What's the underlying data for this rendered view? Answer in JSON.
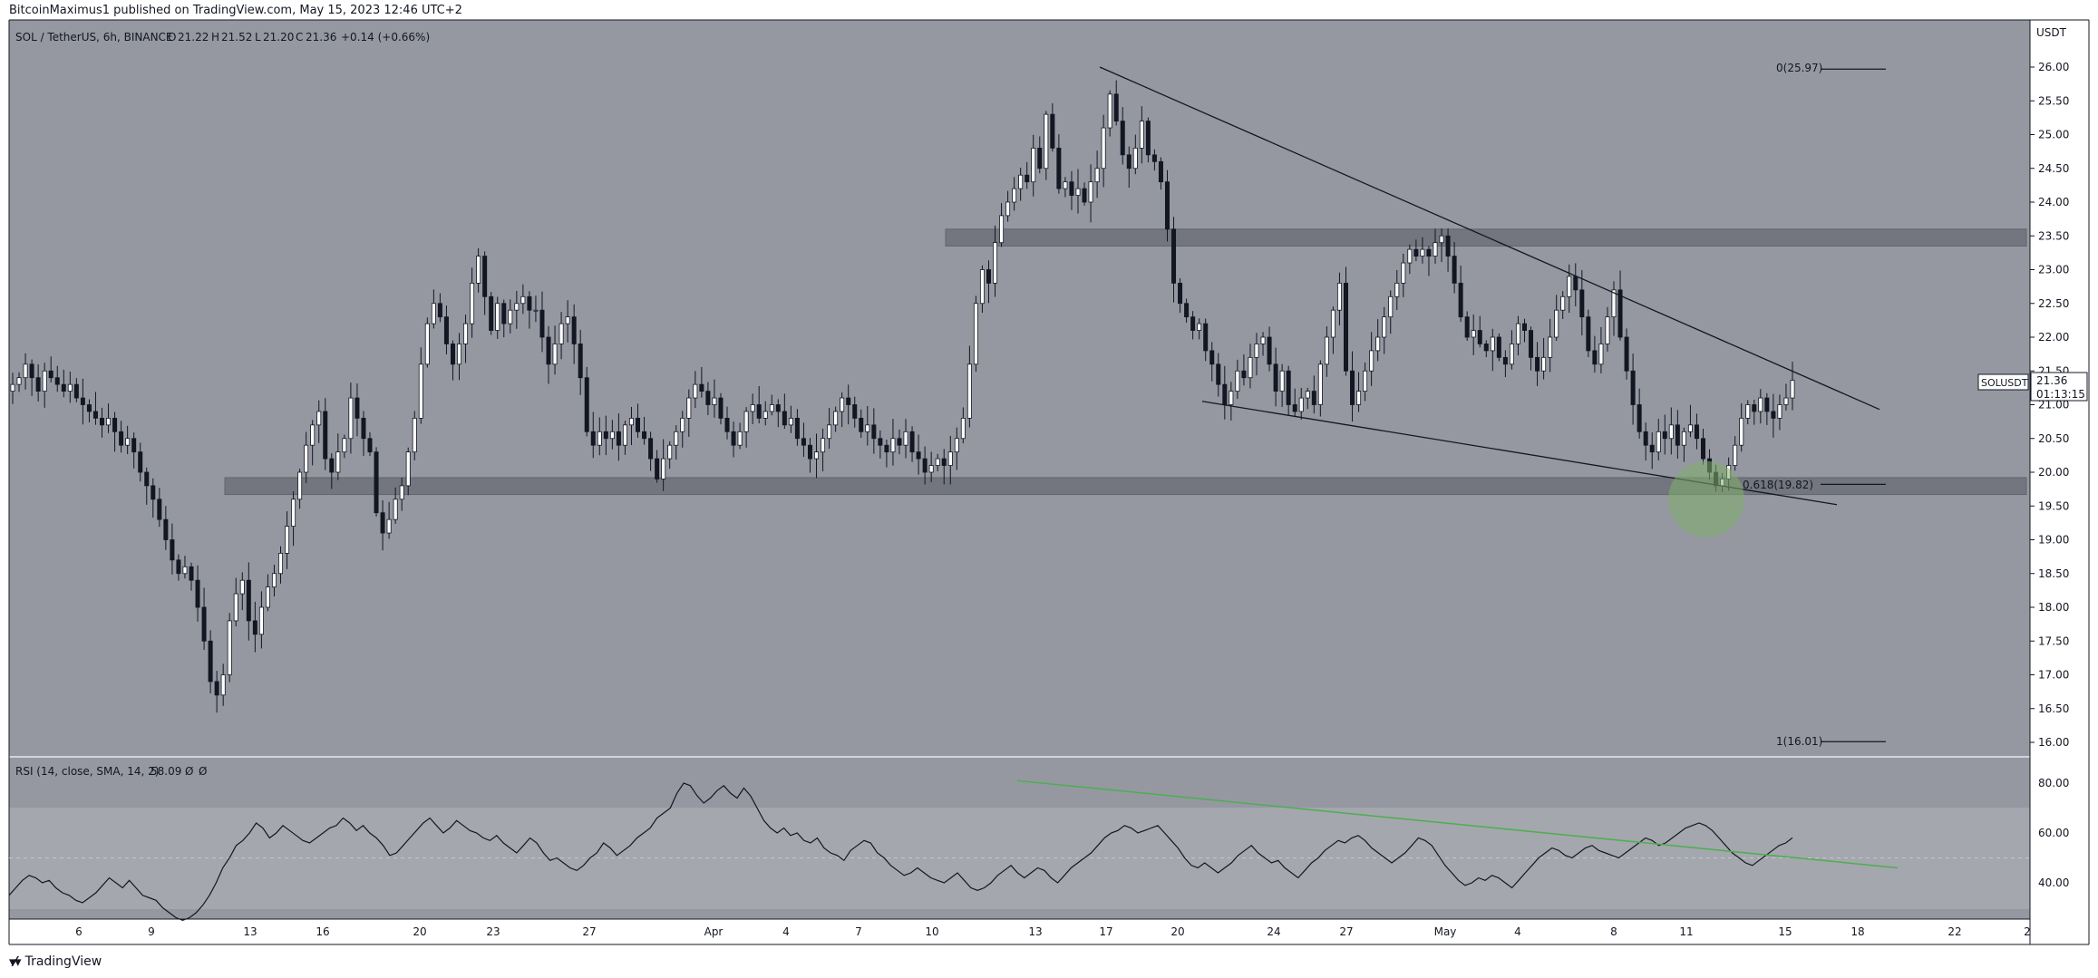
{
  "header": {
    "publisher": "BitcoinMaximus1 published on TradingView.com, May 15, 2023 12:46 UTC+2"
  },
  "footer": {
    "brand": "TradingView",
    "logo_icon": "tradingview-logo-icon"
  },
  "colors": {
    "panel_bg": "#9598a1",
    "frame": "#131722",
    "candle_up": "#ffffff",
    "candle_down": "#131722",
    "zone": "#6b6e76",
    "rsi_line": "#131722",
    "rsi_trend": "#4caf50",
    "highlight": "#7fae6b"
  },
  "main": {
    "legend": {
      "symbol": "SOL / TetherUS, 6h, BINANCE",
      "o_label": "O",
      "o_value": "21.22",
      "h_label": "H",
      "h_value": "21.52",
      "l_label": "L",
      "l_value": "21.20",
      "c_label": "C",
      "c_value": "21.36",
      "change": "+0.14 (+0.66%)"
    },
    "currency": "USDT",
    "price_ticks": [
      "26.00",
      "25.50",
      "25.00",
      "24.50",
      "24.00",
      "23.50",
      "23.00",
      "22.50",
      "22.00",
      "21.50",
      "21.00",
      "20.50",
      "20.00",
      "19.50",
      "19.00",
      "18.50",
      "18.00",
      "17.50",
      "17.00",
      "16.50",
      "16.00"
    ],
    "price_tag": {
      "symbol": "SOLUSDT",
      "price": "21.36",
      "countdown": "01:13:15"
    },
    "fib_labels": [
      "0(25.97)",
      "0.618(19.82)",
      "1(16.01)"
    ]
  },
  "rsi": {
    "legend": {
      "name": "RSI (14, close, SMA, 14, 2)",
      "value": "58.09",
      "v2": "Ø",
      "v3": "Ø"
    },
    "ticks": [
      "80.00",
      "60.00",
      "40.00"
    ]
  },
  "time_axis": {
    "labels": [
      "6",
      "9",
      "13",
      "16",
      "20",
      "23",
      "27",
      "Apr",
      "4",
      "7",
      "10",
      "13",
      "17",
      "20",
      "24",
      "27",
      "May",
      "4",
      "8",
      "11",
      "15",
      "18",
      "22",
      "2"
    ]
  },
  "chart_data": [
    {
      "type": "candlestick",
      "title": "SOL / TetherUS, 6h, BINANCE",
      "y_unit": "USDT",
      "ylim": [
        15.8,
        26.4
      ],
      "x_range": "2023-03-03 to 2023-05-15",
      "x_labels": [
        "6",
        "9",
        "13",
        "16",
        "20",
        "23",
        "27",
        "Apr",
        "4",
        "7",
        "10",
        "13",
        "17",
        "20",
        "24",
        "27",
        "May",
        "4",
        "8",
        "11",
        "15",
        "18",
        "22",
        "2"
      ],
      "last": {
        "open": 21.22,
        "high": 21.52,
        "low": 21.2,
        "close": 21.36,
        "change": "+0.14 (+0.66%)"
      },
      "closes_6h_approx": [
        21.3,
        21.4,
        21.6,
        21.4,
        21.2,
        21.5,
        21.4,
        21.3,
        21.2,
        21.3,
        21.1,
        21.0,
        20.9,
        20.8,
        20.7,
        20.8,
        20.6,
        20.4,
        20.5,
        20.3,
        20.0,
        19.8,
        19.6,
        19.3,
        19.0,
        18.7,
        18.5,
        18.6,
        18.4,
        18.0,
        17.5,
        16.9,
        16.7,
        17.0,
        17.8,
        18.2,
        18.4,
        17.8,
        17.6,
        18.0,
        18.3,
        18.5,
        18.8,
        19.2,
        19.6,
        20.0,
        20.4,
        20.7,
        20.9,
        20.2,
        20.0,
        20.3,
        20.5,
        21.1,
        20.8,
        20.5,
        20.3,
        19.4,
        19.1,
        19.3,
        19.6,
        19.8,
        20.3,
        20.8,
        21.6,
        22.2,
        22.5,
        22.3,
        21.9,
        21.6,
        21.9,
        22.2,
        22.8,
        23.2,
        22.6,
        22.1,
        22.5,
        22.2,
        22.4,
        22.5,
        22.6,
        22.4,
        22.4,
        22.0,
        21.6,
        21.9,
        22.2,
        22.3,
        21.9,
        21.4,
        20.6,
        20.4,
        20.6,
        20.5,
        20.6,
        20.4,
        20.7,
        20.8,
        20.6,
        20.5,
        20.2,
        19.9,
        20.2,
        20.4,
        20.6,
        20.8,
        21.1,
        21.3,
        21.2,
        21.0,
        21.1,
        20.8,
        20.6,
        20.4,
        20.6,
        20.9,
        21.0,
        20.8,
        20.9,
        21.0,
        20.9,
        20.7,
        20.8,
        20.5,
        20.4,
        20.2,
        20.3,
        20.5,
        20.7,
        20.9,
        21.1,
        21.0,
        20.8,
        20.6,
        20.7,
        20.5,
        20.4,
        20.3,
        20.5,
        20.4,
        20.6,
        20.3,
        20.2,
        20.0,
        20.1,
        20.2,
        20.1,
        20.3,
        20.5,
        20.8,
        21.6,
        22.5,
        23.0,
        22.8,
        23.4,
        23.8,
        24.0,
        24.2,
        24.4,
        24.3,
        24.8,
        24.5,
        25.3,
        24.8,
        24.2,
        24.3,
        24.1,
        24.2,
        24.0,
        24.3,
        24.5,
        25.1,
        25.6,
        25.2,
        24.7,
        24.5,
        24.8,
        25.2,
        24.7,
        24.6,
        24.3,
        23.6,
        22.8,
        22.5,
        22.3,
        22.1,
        22.2,
        21.8,
        21.6,
        21.3,
        21.0,
        21.2,
        21.5,
        21.4,
        21.7,
        21.9,
        22.0,
        21.6,
        21.2,
        21.5,
        21.0,
        20.9,
        21.1,
        21.2,
        21.0,
        21.6,
        22.0,
        22.4,
        22.8,
        21.5,
        21.0,
        21.2,
        21.5,
        21.8,
        22.0,
        22.3,
        22.6,
        22.8,
        23.1,
        23.3,
        23.2,
        23.3,
        23.2,
        23.4,
        23.5,
        23.2,
        22.8,
        22.3,
        22.0,
        22.1,
        21.9,
        21.8,
        22.0,
        21.7,
        21.6,
        21.9,
        22.2,
        22.1,
        21.7,
        21.5,
        21.7,
        22.0,
        22.4,
        22.6,
        22.9,
        22.7,
        22.3,
        21.8,
        21.6,
        21.9,
        22.3,
        22.7,
        22.0,
        21.5,
        21.0,
        20.6,
        20.4,
        20.3,
        20.6,
        20.5,
        20.7,
        20.4,
        20.6,
        20.7,
        20.5,
        20.2,
        20.0,
        19.8,
        19.9,
        20.1,
        20.4,
        20.8,
        21.0,
        20.9,
        21.1,
        20.9,
        20.8,
        21.0,
        21.1,
        21.36
      ],
      "horizontal_zones": [
        [
          23.35,
          23.6
        ],
        [
          19.67,
          19.92
        ]
      ],
      "fibonacci": [
        {
          "level": "0",
          "price": 25.97
        },
        {
          "level": "0.618",
          "price": 19.82
        },
        {
          "level": "1",
          "price": 16.01
        }
      ],
      "trendlines": [
        {
          "from": [
            "Apr 17",
            26.0
          ],
          "to": [
            "May 18",
            21.0
          ]
        },
        {
          "from": [
            "Apr 21",
            21.05
          ],
          "to": [
            "May 16",
            19.5
          ]
        }
      ],
      "annotations": [
        "green circle at 0.618 support near May 12",
        "SOLUSDT 21.36 price tag"
      ]
    },
    {
      "type": "line",
      "title": "RSI (14, close, SMA, 14, 2)",
      "ylim": [
        27,
        100
      ],
      "last_value": 58.09,
      "bands": [
        30,
        70
      ],
      "midline": 50,
      "values_approx": [
        35,
        38,
        41,
        43,
        42,
        40,
        41,
        38,
        36,
        35,
        33,
        32,
        34,
        36,
        39,
        42,
        40,
        38,
        41,
        38,
        35,
        34,
        33,
        30,
        28,
        26,
        25,
        26,
        28,
        31,
        35,
        40,
        46,
        50,
        55,
        57,
        60,
        64,
        62,
        58,
        60,
        63,
        61,
        59,
        57,
        56,
        58,
        60,
        62,
        63,
        66,
        64,
        61,
        63,
        60,
        58,
        55,
        51,
        52,
        55,
        58,
        61,
        64,
        66,
        63,
        60,
        62,
        65,
        63,
        61,
        60,
        58,
        57,
        59,
        56,
        54,
        52,
        55,
        58,
        56,
        52,
        49,
        50,
        48,
        46,
        45,
        47,
        50,
        52,
        56,
        54,
        51,
        53,
        55,
        58,
        60,
        62,
        66,
        68,
        70,
        76,
        80,
        79,
        75,
        72,
        74,
        77,
        79,
        76,
        74,
        78,
        75,
        70,
        65,
        62,
        60,
        62,
        59,
        60,
        57,
        56,
        58,
        54,
        52,
        51,
        49,
        53,
        55,
        57,
        56,
        52,
        50,
        47,
        45,
        43,
        44,
        46,
        44,
        42,
        41,
        40,
        42,
        44,
        41,
        38,
        37,
        38,
        40,
        43,
        45,
        47,
        44,
        42,
        44,
        46,
        45,
        42,
        40,
        43,
        46,
        48,
        50,
        52,
        55,
        58,
        60,
        61,
        63,
        62,
        60,
        61,
        62,
        63,
        60,
        57,
        54,
        50,
        47,
        46,
        48,
        46,
        44,
        46,
        48,
        51,
        53,
        55,
        52,
        50,
        48,
        49,
        46,
        44,
        42,
        45,
        48,
        50,
        53,
        55,
        57,
        56,
        58,
        59,
        57,
        54,
        52,
        50,
        48,
        50,
        52,
        55,
        58,
        57,
        55,
        51,
        47,
        44,
        41,
        39,
        40,
        42,
        41,
        43,
        42,
        40,
        38,
        41,
        44,
        47,
        50,
        52,
        54,
        53,
        51,
        50,
        52,
        54,
        55,
        53,
        52,
        51,
        50,
        52,
        54,
        56,
        58,
        57,
        55,
        56,
        58,
        60,
        62,
        63,
        64,
        63,
        61,
        58,
        55,
        52,
        50,
        48,
        47,
        49,
        51,
        53,
        55,
        56,
        58.09
      ],
      "trendline": {
        "from": [
          "Apr 13",
          81
        ],
        "to": [
          "May 20",
          45
        ]
      }
    }
  ]
}
